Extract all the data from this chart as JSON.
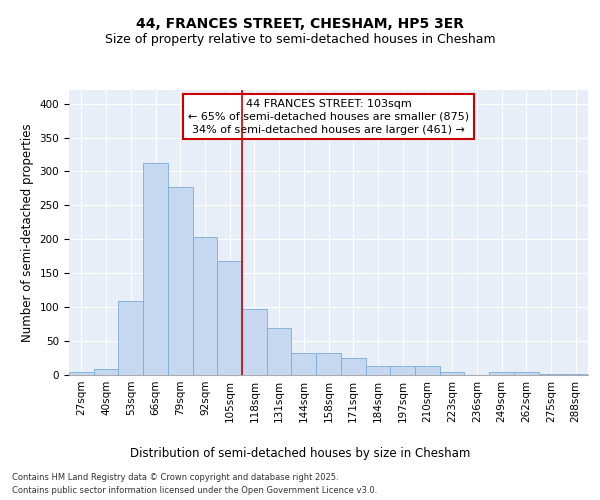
{
  "title": "44, FRANCES STREET, CHESHAM, HP5 3ER",
  "subtitle": "Size of property relative to semi-detached houses in Chesham",
  "xlabel": "Distribution of semi-detached houses by size in Chesham",
  "ylabel": "Number of semi-detached properties",
  "categories": [
    "27sqm",
    "40sqm",
    "53sqm",
    "66sqm",
    "79sqm",
    "92sqm",
    "105sqm",
    "118sqm",
    "131sqm",
    "144sqm",
    "158sqm",
    "171sqm",
    "184sqm",
    "197sqm",
    "210sqm",
    "223sqm",
    "236sqm",
    "249sqm",
    "262sqm",
    "275sqm",
    "288sqm"
  ],
  "values": [
    5,
    9,
    109,
    312,
    277,
    204,
    168,
    97,
    70,
    33,
    33,
    25,
    14,
    13,
    13,
    4,
    0,
    5,
    5,
    2,
    1
  ],
  "bar_color": "#c5d8f0",
  "bar_edge_color": "#7aadd4",
  "vline_x": 6.5,
  "vline_color": "#cc0000",
  "annotation_title": "44 FRANCES STREET: 103sqm",
  "annotation_line1": "← 65% of semi-detached houses are smaller (875)",
  "annotation_line2": "34% of semi-detached houses are larger (461) →",
  "annotation_box_facecolor": "#ffffff",
  "annotation_box_edgecolor": "#cc0000",
  "ylim": [
    0,
    420
  ],
  "yticks": [
    0,
    50,
    100,
    150,
    200,
    250,
    300,
    350,
    400
  ],
  "plot_bg_color": "#e8eef8",
  "fig_bg_color": "#ffffff",
  "title_fontsize": 10,
  "subtitle_fontsize": 9,
  "axis_label_fontsize": 8.5,
  "tick_fontsize": 7.5,
  "annotation_fontsize": 8,
  "footer_fontsize": 6,
  "footer_line1": "Contains HM Land Registry data © Crown copyright and database right 2025.",
  "footer_line2": "Contains public sector information licensed under the Open Government Licence v3.0."
}
